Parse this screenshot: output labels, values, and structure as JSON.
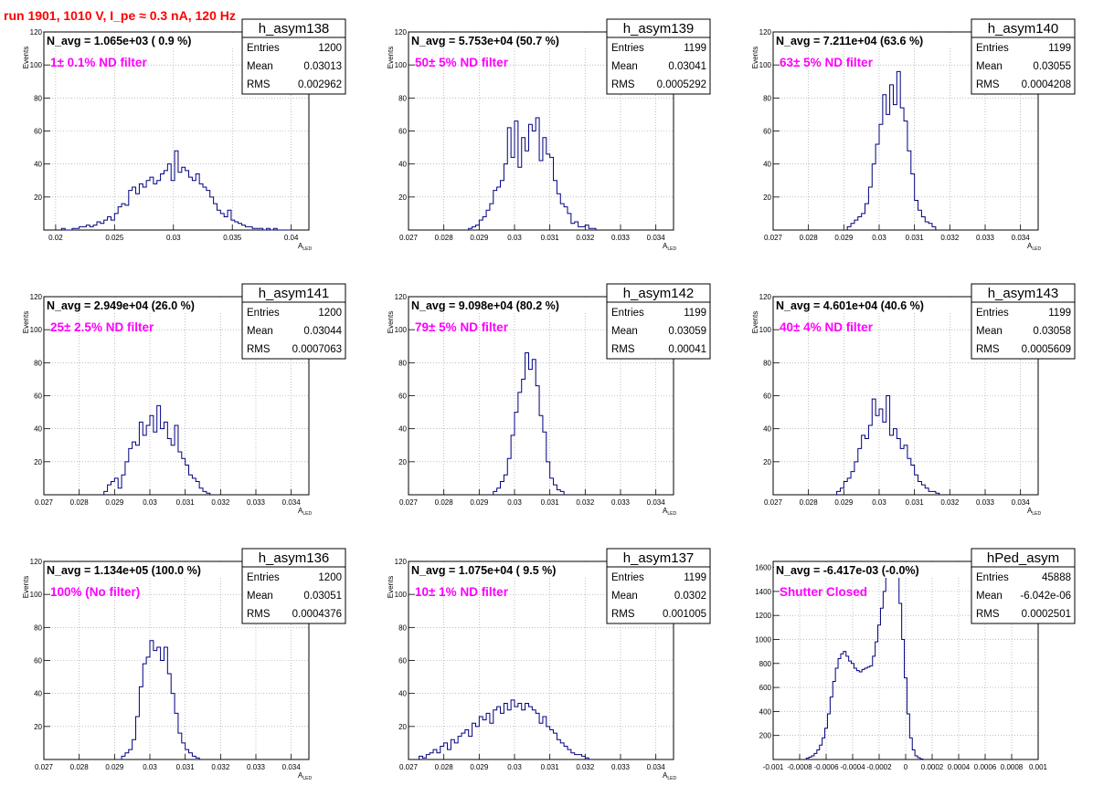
{
  "page_title": "run 1901,  1010 V, I_pe ≈ 0.3 nA, 120 Hz",
  "stats_labels": {
    "entries": "Entries",
    "mean": "Mean",
    "rms": "RMS"
  },
  "colors": {
    "histogram": "#000080",
    "filter_label": "#ff00ff",
    "run_title": "#ff0000",
    "grid": "#999999"
  },
  "chart_data": [
    {
      "type": "histogram",
      "name": "h_asym138",
      "nbar": "N_avg = 1.065e+03 ( 0.9 %)",
      "filter": "1± 0.1% ND filter",
      "entries": "1200",
      "mean": "0.03013",
      "rms": "0.002962",
      "ylabel": "Events",
      "xlabel": "A",
      "xlim": [
        0.019,
        0.0415
      ],
      "ylim": [
        0,
        120
      ],
      "xticks": [
        "0.02",
        "0.025",
        "0.03",
        "0.035",
        "0.04"
      ],
      "xtick_values": [
        0.02,
        0.025,
        0.03,
        0.035,
        0.04
      ],
      "yticks": [
        "20",
        "40",
        "60",
        "80",
        "100",
        "120"
      ],
      "ytick_values": [
        20,
        40,
        60,
        80,
        100,
        120
      ],
      "bins": {
        "start": 0.0205,
        "width": 0.0003,
        "counts": [
          1,
          0,
          0,
          1,
          1,
          2,
          2,
          3,
          2,
          3,
          5,
          4,
          6,
          8,
          6,
          10,
          14,
          16,
          15,
          24,
          26,
          22,
          28,
          26,
          30,
          32,
          28,
          30,
          34,
          36,
          40,
          30,
          48,
          35,
          38,
          36,
          32,
          30,
          34,
          28,
          26,
          24,
          20,
          16,
          12,
          10,
          8,
          12,
          6,
          5,
          4,
          3,
          2,
          2,
          1,
          1,
          1,
          0,
          1,
          0,
          1,
          0,
          0,
          0,
          0
        ]
      }
    },
    {
      "type": "histogram",
      "name": "h_asym139",
      "nbar": "N_avg = 5.753e+04 (50.7 %)",
      "filter": "50± 5% ND filter",
      "entries": "1199",
      "mean": "0.03041",
      "rms": "0.0005292",
      "ylabel": "Events",
      "xlabel": "A",
      "xlim": [
        0.027,
        0.0345
      ],
      "ylim": [
        0,
        120
      ],
      "xticks": [
        "0.027",
        "0.028",
        "0.029",
        "0.03",
        "0.031",
        "0.032",
        "0.033",
        "0.034"
      ],
      "xtick_values": [
        0.027,
        0.028,
        0.029,
        0.03,
        0.031,
        0.032,
        0.033,
        0.034
      ],
      "yticks": [
        "20",
        "40",
        "60",
        "80",
        "100",
        "120"
      ],
      "ytick_values": [
        20,
        40,
        60,
        80,
        100,
        120
      ],
      "bins": {
        "start": 0.0287,
        "width": 0.0001,
        "counts": [
          1,
          2,
          3,
          6,
          8,
          12,
          16,
          24,
          26,
          30,
          40,
          62,
          44,
          66,
          38,
          56,
          48,
          64,
          60,
          68,
          42,
          56,
          46,
          44,
          30,
          22,
          16,
          14,
          10,
          4,
          5,
          2,
          2,
          3,
          1,
          1
        ]
      }
    },
    {
      "type": "histogram",
      "name": "h_asym140",
      "nbar": "N_avg = 7.211e+04 (63.6 %)",
      "filter": "63± 5% ND filter",
      "entries": "1199",
      "mean": "0.03055",
      "rms": "0.0004208",
      "ylabel": "Events",
      "xlabel": "A",
      "xlim": [
        0.027,
        0.0345
      ],
      "ylim": [
        0,
        120
      ],
      "xticks": [
        "0.027",
        "0.028",
        "0.029",
        "0.03",
        "0.031",
        "0.032",
        "0.033",
        "0.034"
      ],
      "xtick_values": [
        0.027,
        0.028,
        0.029,
        0.03,
        0.031,
        0.032,
        0.033,
        0.034
      ],
      "yticks": [
        "20",
        "40",
        "60",
        "80",
        "100",
        "120"
      ],
      "ytick_values": [
        20,
        40,
        60,
        80,
        100,
        120
      ],
      "bins": {
        "start": 0.0291,
        "width": 0.0001,
        "counts": [
          2,
          4,
          6,
          8,
          10,
          16,
          26,
          40,
          52,
          64,
          82,
          70,
          88,
          76,
          96,
          74,
          66,
          48,
          34,
          18,
          12,
          8,
          5,
          4,
          2
        ]
      }
    },
    {
      "type": "histogram",
      "name": "h_asym141",
      "nbar": "N_avg = 2.949e+04 (26.0 %)",
      "filter": "25± 2.5% ND filter",
      "entries": "1200",
      "mean": "0.03044",
      "rms": "0.0007063",
      "ylabel": "Events",
      "xlabel": "A",
      "xlim": [
        0.027,
        0.0345
      ],
      "ylim": [
        0,
        120
      ],
      "xticks": [
        "0.027",
        "0.028",
        "0.029",
        "0.03",
        "0.031",
        "0.032",
        "0.033",
        "0.034"
      ],
      "xtick_values": [
        0.027,
        0.028,
        0.029,
        0.03,
        0.031,
        0.032,
        0.033,
        0.034
      ],
      "yticks": [
        "20",
        "40",
        "60",
        "80",
        "100",
        "120"
      ],
      "ytick_values": [
        20,
        40,
        60,
        80,
        100,
        120
      ],
      "bins": {
        "start": 0.0287,
        "width": 0.0001,
        "counts": [
          2,
          6,
          8,
          10,
          4,
          12,
          20,
          28,
          32,
          30,
          44,
          36,
          42,
          48,
          38,
          54,
          40,
          44,
          34,
          30,
          42,
          26,
          22,
          18,
          12,
          10,
          8,
          4,
          2,
          1
        ]
      }
    },
    {
      "type": "histogram",
      "name": "h_asym142",
      "nbar": "N_avg = 9.098e+04 (80.2 %)",
      "filter": "79± 5% ND filter",
      "entries": "1199",
      "mean": "0.03059",
      "rms": "0.00041",
      "ylabel": "Events",
      "xlabel": "A",
      "xlim": [
        0.027,
        0.0345
      ],
      "ylim": [
        0,
        120
      ],
      "xticks": [
        "0.027",
        "0.028",
        "0.029",
        "0.03",
        "0.031",
        "0.032",
        "0.033",
        "0.034"
      ],
      "xtick_values": [
        0.027,
        0.028,
        0.029,
        0.03,
        0.031,
        0.032,
        0.033,
        0.034
      ],
      "yticks": [
        "20",
        "40",
        "60",
        "80",
        "100",
        "120"
      ],
      "ytick_values": [
        20,
        40,
        60,
        80,
        100,
        120
      ],
      "bins": {
        "start": 0.0294,
        "width": 0.0001,
        "counts": [
          2,
          4,
          8,
          12,
          22,
          36,
          50,
          62,
          70,
          86,
          76,
          82,
          66,
          48,
          38,
          20,
          10,
          6,
          3,
          2
        ]
      }
    },
    {
      "type": "histogram",
      "name": "h_asym143",
      "nbar": "N_avg = 4.601e+04 (40.6 %)",
      "filter": "40± 4% ND filter",
      "entries": "1199",
      "mean": "0.03058",
      "rms": "0.0005609",
      "ylabel": "Events",
      "xlabel": "A",
      "xlim": [
        0.027,
        0.0345
      ],
      "ylim": [
        0,
        120
      ],
      "xticks": [
        "0.027",
        "0.028",
        "0.029",
        "0.03",
        "0.031",
        "0.032",
        "0.033",
        "0.034"
      ],
      "xtick_values": [
        0.027,
        0.028,
        0.029,
        0.03,
        0.031,
        0.032,
        0.033,
        0.034
      ],
      "yticks": [
        "20",
        "40",
        "60",
        "80",
        "100",
        "120"
      ],
      "ytick_values": [
        20,
        40,
        60,
        80,
        100,
        120
      ],
      "bins": {
        "start": 0.0288,
        "width": 0.0001,
        "counts": [
          2,
          4,
          8,
          10,
          14,
          20,
          28,
          36,
          34,
          42,
          58,
          48,
          52,
          44,
          60,
          36,
          40,
          34,
          28,
          30,
          22,
          18,
          12,
          8,
          6,
          4,
          2,
          2,
          1
        ]
      }
    },
    {
      "type": "histogram",
      "name": "h_asym136",
      "nbar": "N_avg = 1.134e+05 (100.0 %)",
      "filter": "100% (No filter)",
      "entries": "1200",
      "mean": "0.03051",
      "rms": "0.0004376",
      "ylabel": "Events",
      "xlabel": "A",
      "xlim": [
        0.027,
        0.0345
      ],
      "ylim": [
        0,
        120
      ],
      "xticks": [
        "0.027",
        "0.028",
        "0.029",
        "0.03",
        "0.031",
        "0.032",
        "0.033",
        "0.034"
      ],
      "xtick_values": [
        0.027,
        0.028,
        0.029,
        0.03,
        0.031,
        0.032,
        0.033,
        0.034
      ],
      "yticks": [
        "20",
        "40",
        "60",
        "80",
        "100",
        "120"
      ],
      "ytick_values": [
        20,
        40,
        60,
        80,
        100,
        120
      ],
      "bins": {
        "start": 0.0292,
        "width": 0.0001,
        "counts": [
          2,
          4,
          6,
          12,
          26,
          44,
          58,
          62,
          72,
          66,
          68,
          60,
          68,
          52,
          40,
          28,
          16,
          10,
          6,
          4,
          2,
          1
        ]
      }
    },
    {
      "type": "histogram",
      "name": "h_asym137",
      "nbar": "N_avg = 1.075e+04 ( 9.5 %)",
      "filter": "10± 1% ND filter",
      "entries": "1199",
      "mean": "0.0302",
      "rms": "0.001005",
      "ylabel": "Events",
      "xlabel": "A",
      "xlim": [
        0.027,
        0.0345
      ],
      "ylim": [
        0,
        120
      ],
      "xticks": [
        "0.027",
        "0.028",
        "0.029",
        "0.03",
        "0.031",
        "0.032",
        "0.033",
        "0.034"
      ],
      "xtick_values": [
        0.027,
        0.028,
        0.029,
        0.03,
        0.031,
        0.032,
        0.033,
        0.034
      ],
      "yticks": [
        "20",
        "40",
        "60",
        "80",
        "100",
        "120"
      ],
      "ytick_values": [
        20,
        40,
        60,
        80,
        100,
        120
      ],
      "bins": {
        "start": 0.0273,
        "width": 0.0001,
        "counts": [
          2,
          1,
          3,
          4,
          6,
          4,
          8,
          10,
          6,
          12,
          10,
          14,
          16,
          18,
          14,
          22,
          20,
          26,
          24,
          28,
          22,
          30,
          32,
          28,
          34,
          30,
          36,
          32,
          34,
          30,
          34,
          32,
          30,
          28,
          22,
          26,
          20,
          18,
          16,
          12,
          10,
          8,
          6,
          4,
          3,
          3,
          2,
          1
        ]
      }
    },
    {
      "type": "histogram",
      "name": "hPed_asym",
      "nbar": "N_avg = -6.417e-03 (-0.0%)",
      "filter": "Shutter Closed",
      "entries": "45888",
      "mean": "-6.042e-06",
      "rms": "0.0002501",
      "ylabel": "",
      "xlabel": "",
      "xlim": [
        -0.001,
        0.001
      ],
      "ylim": [
        0,
        1650
      ],
      "xticks": [
        "-0.001",
        "-0.0008",
        "-0.0006",
        "-0.0004",
        "-0.0002",
        "0",
        "0.0002",
        "0.0004",
        "0.0006",
        "0.0008",
        "0.001"
      ],
      "xtick_values": [
        -0.001,
        -0.0008,
        -0.0006,
        -0.0004,
        -0.0002,
        0,
        0.0002,
        0.0004,
        0.0006,
        0.0008,
        0.001
      ],
      "yticks": [
        "200",
        "400",
        "600",
        "800",
        "1000",
        "1200",
        "1400",
        "1600"
      ],
      "ytick_values": [
        200,
        400,
        600,
        800,
        1000,
        1200,
        1400,
        1600
      ],
      "bins": {
        "start": -0.00075,
        "width": 2e-05,
        "counts": [
          10,
          20,
          30,
          50,
          80,
          120,
          180,
          260,
          380,
          520,
          650,
          760,
          840,
          880,
          900,
          860,
          820,
          800,
          760,
          740,
          730,
          750,
          760,
          770,
          780,
          860,
          980,
          1120,
          1260,
          1400,
          1520,
          1600,
          1640,
          1620,
          1520,
          1300,
          1000,
          680,
          380,
          180,
          80,
          30,
          15,
          5
        ]
      }
    }
  ]
}
